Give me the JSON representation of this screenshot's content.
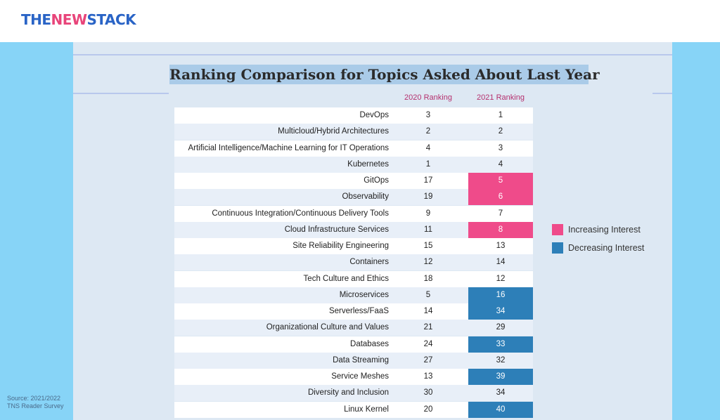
{
  "header": {
    "logo": {
      "part1": "THE",
      "part2": "NEW",
      "part3": "STACK"
    }
  },
  "source": {
    "line1": "Source: 2021/2022",
    "line2": "TNS Reader Survey"
  },
  "chart_data": {
    "type": "table",
    "title": "Ranking Comparison for Topics Asked About Last Year",
    "columns": [
      "2020 Ranking",
      "2021 Ranking"
    ],
    "rows": [
      {
        "topic": "DevOps",
        "r2020": "3",
        "r2021": "1",
        "trend": "none"
      },
      {
        "topic": "Multicloud/Hybrid Architectures",
        "r2020": "2",
        "r2021": "2",
        "trend": "none"
      },
      {
        "topic": "Artificial Intelligence/Machine Learning for IT Operations",
        "r2020": "4",
        "r2021": "3",
        "trend": "none"
      },
      {
        "topic": "Kubernetes",
        "r2020": "1",
        "r2021": "4",
        "trend": "none"
      },
      {
        "topic": "GitOps",
        "r2020": "17",
        "r2021": "5",
        "trend": "increasing"
      },
      {
        "topic": "Observability",
        "r2020": "19",
        "r2021": "6",
        "trend": "increasing"
      },
      {
        "topic": "Continuous Integration/Continuous Delivery Tools",
        "r2020": "9",
        "r2021": "7",
        "trend": "none"
      },
      {
        "topic": "Cloud Infrastructure Services",
        "r2020": "11",
        "r2021": "8",
        "trend": "increasing"
      },
      {
        "topic": "Site Reliability Engineering",
        "r2020": "15",
        "r2021": "13",
        "trend": "none"
      },
      {
        "topic": "Containers",
        "r2020": "12",
        "r2021": "14",
        "trend": "none"
      },
      {
        "topic": "Tech Culture and Ethics",
        "r2020": "18",
        "r2021": "12",
        "trend": "none"
      },
      {
        "topic": "Microservices",
        "r2020": "5",
        "r2021": "16",
        "trend": "decreasing"
      },
      {
        "topic": "Serverless/FaaS",
        "r2020": "14",
        "r2021": "34",
        "trend": "decreasing"
      },
      {
        "topic": "Organizational Culture and Values",
        "r2020": "21",
        "r2021": "29",
        "trend": "none"
      },
      {
        "topic": "Databases",
        "r2020": "24",
        "r2021": "33",
        "trend": "decreasing"
      },
      {
        "topic": "Data Streaming",
        "r2020": "27",
        "r2021": "32",
        "trend": "none"
      },
      {
        "topic": "Service Meshes",
        "r2020": "13",
        "r2021": "39",
        "trend": "decreasing"
      },
      {
        "topic": "Diversity and Inclusion",
        "r2020": "30",
        "r2021": "34",
        "trend": "none"
      },
      {
        "topic": "Linux Kernel",
        "r2020": "20",
        "r2021": "40",
        "trend": "decreasing"
      }
    ],
    "legend": [
      {
        "label": "Increasing Interest",
        "color": "#ef4b8a"
      },
      {
        "label": "Decreasing Interest",
        "color": "#2d7fb8"
      }
    ],
    "legend_placement": "right"
  }
}
